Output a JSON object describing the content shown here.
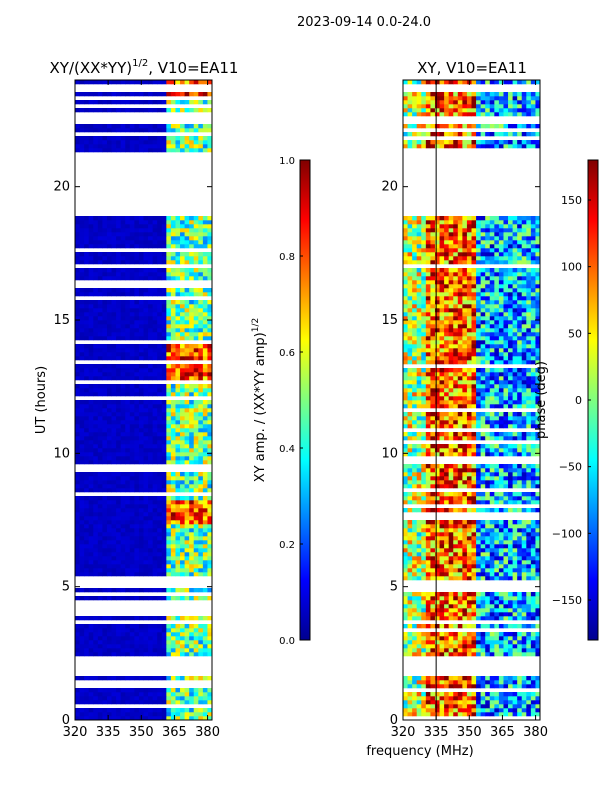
{
  "suptitle": "2023-09-14 0.0-24.0",
  "xlabel": "frequency (MHz)",
  "chart_data": [
    {
      "type": "heatmap",
      "title": "XY/(XX*YY)",
      "title_sup": "1/2",
      "title_suffix": ", V10=EA11",
      "xlabel": "frequency (MHz)",
      "ylabel": "UT (hours)",
      "xlim": [
        320,
        382
      ],
      "ylim": [
        0,
        24
      ],
      "xticks": [
        "320",
        "335",
        "350",
        "365",
        "380"
      ],
      "xtick_values": [
        320,
        335,
        350,
        365,
        380
      ],
      "yticks": [
        "0",
        "5",
        "10",
        "15",
        "20"
      ],
      "ytick_values": [
        0,
        5,
        10,
        15,
        20
      ],
      "colorbar": {
        "label": "XY amp. / (XX*YY amp)",
        "label_sup": "1/2",
        "range": [
          0.0,
          1.0
        ],
        "ticks": [
          "0.0",
          "0.2",
          "0.4",
          "0.6",
          "0.8",
          "1.0"
        ],
        "tick_values": [
          0.0,
          0.2,
          0.4,
          0.6,
          0.8,
          1.0
        ]
      },
      "colormap": "jet",
      "data_gaps_hours": [
        [
          1.1,
          1.35
        ],
        [
          1.6,
          2.4
        ],
        [
          4.2,
          4.5
        ],
        [
          16.2,
          16.4
        ],
        [
          18.8,
          21.3
        ],
        [
          22.3,
          22.6
        ]
      ],
      "high_amplitude_bands_hours": [
        [
          7.2,
          8.2
        ],
        [
          12.5,
          14.0
        ],
        [
          23.2,
          23.9
        ]
      ],
      "high_amplitude_channels_MHz": [
        360,
        385
      ]
    },
    {
      "type": "heatmap",
      "title": "XY, V10=EA11",
      "xlim": [
        320,
        382
      ],
      "ylim": [
        0,
        24
      ],
      "xticks": [
        "320",
        "335",
        "350",
        "365",
        "380"
      ],
      "xtick_values": [
        320,
        335,
        350,
        365,
        380
      ],
      "yticks": [
        "0",
        "5",
        "10",
        "15",
        "20"
      ],
      "ytick_values": [
        0,
        5,
        10,
        15,
        20
      ],
      "colorbar": {
        "label": "phase (deg)",
        "range": [
          -180,
          180
        ],
        "ticks": [
          "−150",
          "−100",
          "−50",
          "0",
          "50",
          "100",
          "150"
        ],
        "tick_values": [
          -150,
          -100,
          -50,
          0,
          50,
          100,
          150
        ]
      },
      "colormap": "jet",
      "marker_line_MHz": 335,
      "data_gaps_hours": [
        [
          1.6,
          2.4
        ],
        [
          18.8,
          21.3
        ],
        [
          22.3,
          22.6
        ]
      ]
    }
  ]
}
